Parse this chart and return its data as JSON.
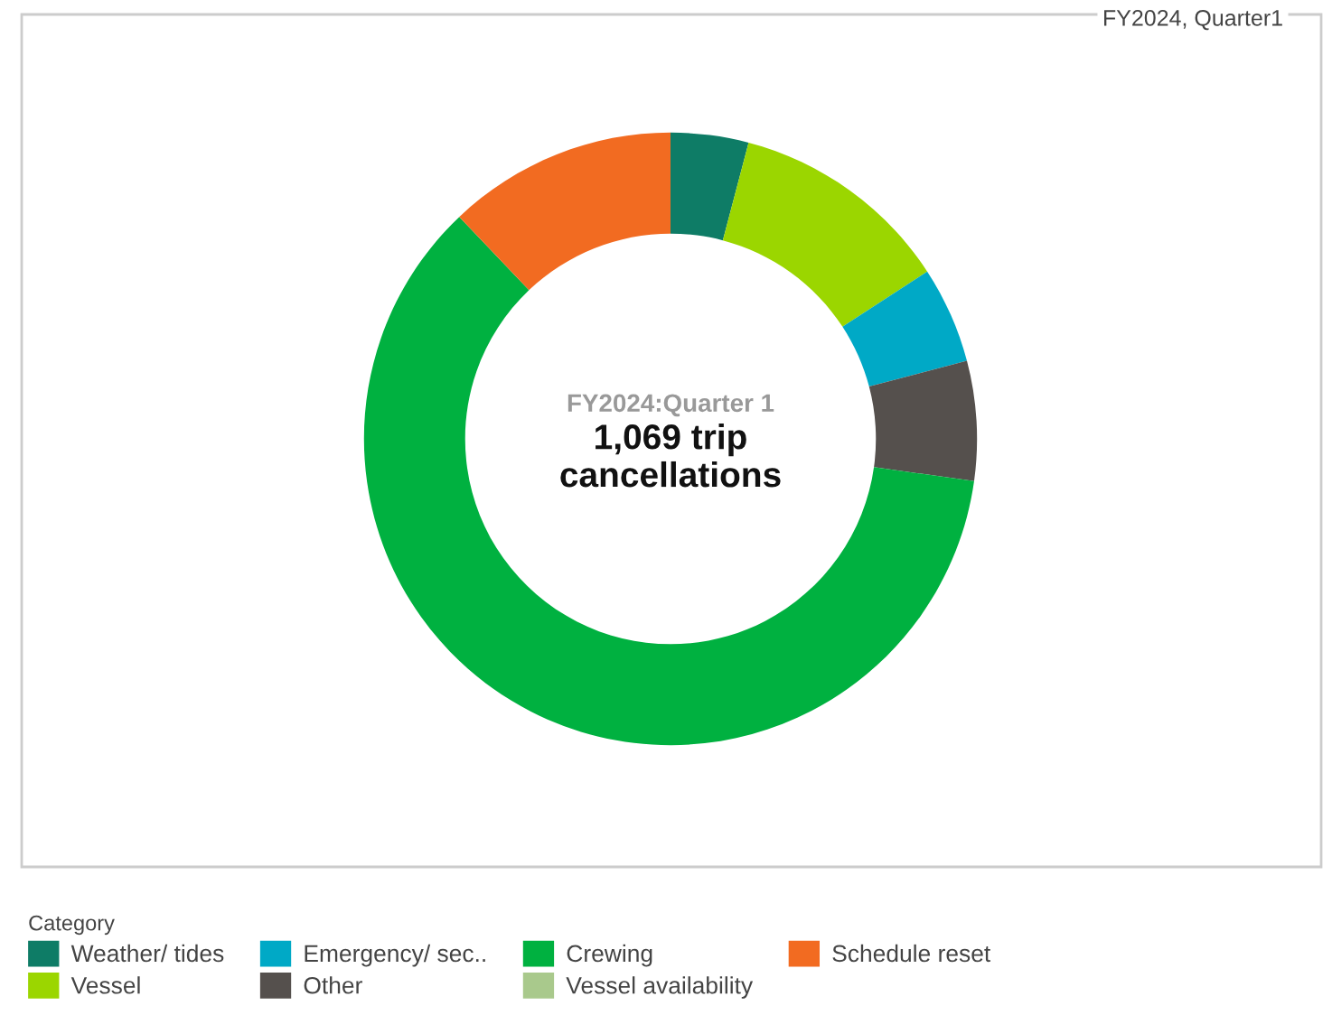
{
  "chart_data": {
    "type": "donut",
    "title": "1,069 trip\ncancellations",
    "subtitle": "FY2024:Quarter 1",
    "annotations": [
      "FY2024, Quarter1"
    ],
    "legend_title": "Category",
    "legend": "bottom",
    "categories": [
      "Weather/ tides",
      "Vessel",
      "Emergency/ sec..",
      "Other",
      "Crewing",
      "Vessel availability",
      "Schedule reset"
    ],
    "values": [
      4.1,
      11.7,
      5.1,
      6.3,
      60.7,
      0,
      12.1
    ],
    "colors": [
      "#0e7c66",
      "#9bd600",
      "#00a9c6",
      "#55504d",
      "#00b140",
      "#a9c98c",
      "#f26b21"
    ]
  }
}
